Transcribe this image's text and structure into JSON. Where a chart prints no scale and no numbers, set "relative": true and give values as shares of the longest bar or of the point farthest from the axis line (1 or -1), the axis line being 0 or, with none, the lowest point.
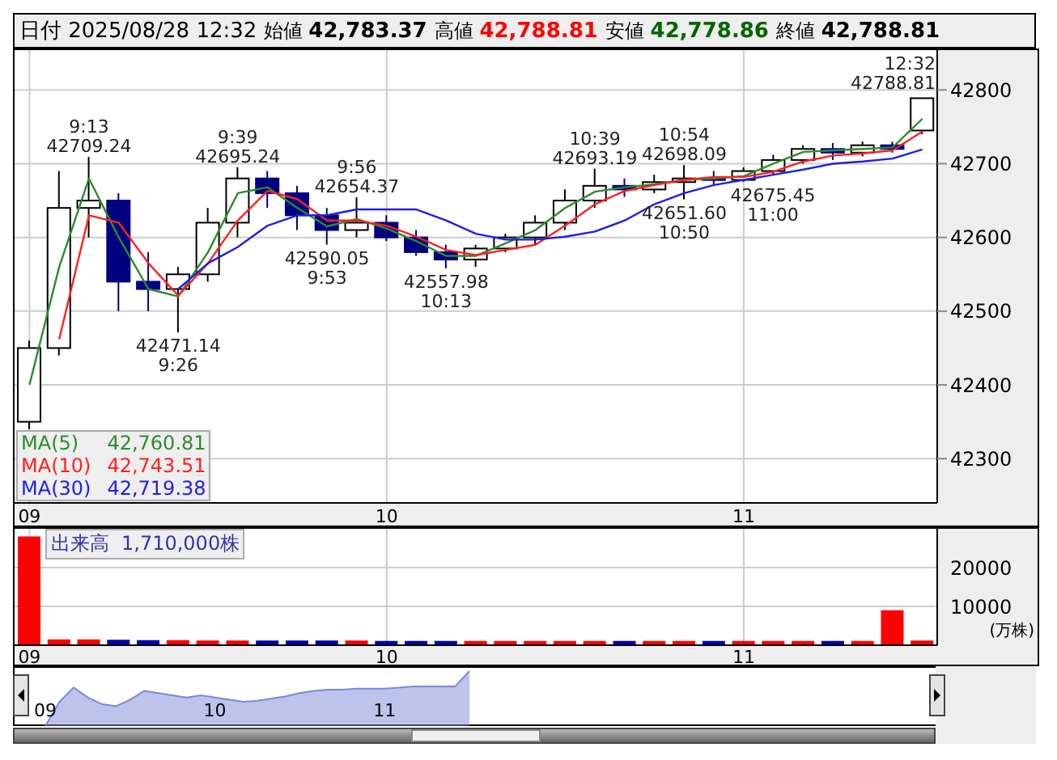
{
  "chart_data": [
    {
      "type": "candlestick",
      "title": "日付 2025/08/28 12:32 始値 42,783.37 高値 42,788.81 安値 42,778.86 終値 42,788.81",
      "categories": [
        "09",
        null,
        null,
        null,
        null,
        null,
        null,
        null,
        null,
        null,
        null,
        null,
        "10",
        null,
        null,
        null,
        null,
        null,
        null,
        null,
        null,
        null,
        null,
        null,
        "11",
        null,
        null,
        null,
        null,
        null,
        null
      ],
      "ohlc": [
        [
          42350,
          42460,
          42340,
          42450
        ],
        [
          42450,
          42690,
          42440,
          42640
        ],
        [
          42640,
          42709.24,
          42600,
          42650
        ],
        [
          42650,
          42660,
          42500,
          42540
        ],
        [
          42540,
          42580,
          42500,
          42530
        ],
        [
          42530,
          42560,
          42471.14,
          42550
        ],
        [
          42550,
          42640,
          42540,
          42620
        ],
        [
          42620,
          42695.24,
          42600,
          42680
        ],
        [
          42680,
          42690,
          42640,
          42660
        ],
        [
          42660,
          42670,
          42610,
          42630
        ],
        [
          42630,
          42640,
          42590.05,
          42610
        ],
        [
          42610,
          42654.37,
          42600,
          42620
        ],
        [
          42620,
          42630,
          42595,
          42600
        ],
        [
          42600,
          42610,
          42575,
          42580
        ],
        [
          42580,
          42590,
          42557.98,
          42570
        ],
        [
          42570,
          42590,
          42560,
          42585
        ],
        [
          42585,
          42605,
          42580,
          42600
        ],
        [
          42600,
          42630,
          42590,
          42620
        ],
        [
          42620,
          42665,
          42610,
          42650
        ],
        [
          42650,
          42693.19,
          42640,
          42670
        ],
        [
          42670,
          42680,
          42655,
          42665
        ],
        [
          42665,
          42685,
          42660,
          42675
        ],
        [
          42675,
          42698.09,
          42651.6,
          42680
        ],
        [
          42680,
          42690,
          42670,
          42678
        ],
        [
          42678,
          42695,
          42675.45,
          42690
        ],
        [
          42690,
          42712,
          42685,
          42705
        ],
        [
          42705,
          42725,
          42700,
          42720
        ],
        [
          42720,
          42728,
          42705,
          42715
        ],
        [
          42715,
          42730,
          42710,
          42725
        ],
        [
          42725,
          42730,
          42715,
          42720
        ],
        [
          42745,
          42788.81,
          42740,
          42788.81
        ]
      ],
      "series": [
        {
          "name": "MA(5)",
          "type": "line",
          "color": "#2e8b2e",
          "values": [
            42400,
            42560,
            42680,
            42600,
            42530,
            42520,
            42580,
            42660,
            42668,
            42640,
            42615,
            42625,
            42612,
            42595,
            42575,
            42575,
            42592,
            42610,
            42640,
            42662,
            42668,
            42672,
            42678,
            42680,
            42683,
            42700,
            42716,
            42718,
            42720,
            42722,
            42760.81
          ]
        },
        {
          "name": "MA(10)",
          "type": "line",
          "color": "#ff2020",
          "values": [
            null,
            42462,
            42630,
            42620,
            42565,
            42521,
            42565,
            42623,
            42663,
            42652,
            42623,
            42623,
            42616,
            42601,
            42583,
            42576,
            42583,
            42590,
            42616,
            42645,
            42663,
            42671,
            42678,
            42682,
            42682,
            42689,
            42703,
            42711,
            42714,
            42718,
            42743.51
          ]
        },
        {
          "name": "MA(30)",
          "type": "line",
          "color": "#2020e0",
          "values": [
            null,
            null,
            null,
            null,
            null,
            42530,
            42565,
            42587,
            42616,
            42630,
            42630,
            42638,
            42638,
            42638,
            42623,
            42605,
            42597,
            42597,
            42601,
            42608,
            42623,
            42645,
            42660,
            42671,
            42678,
            42685,
            42692,
            42700,
            42703,
            42707,
            42719.38
          ]
        }
      ],
      "ylim": [
        42240,
        42854
      ],
      "yticks": [
        42300,
        42400,
        42500,
        42600,
        42700,
        42800
      ],
      "grid": true,
      "legend": "bottom left",
      "annotations": [
        {
          "text": "9:13\n42709.24",
          "y": 42709.24
        },
        {
          "text": "42471.14\n9:26",
          "y": 42471.14
        },
        {
          "text": "9:39\n42695.24",
          "y": 42695.24
        },
        {
          "text": "42590.05\n9:53",
          "y": 42590.05
        },
        {
          "text": "9:56\n42654.37",
          "y": 42654.37
        },
        {
          "text": "42557.98\n10:13",
          "y": 42557.98
        },
        {
          "text": "10:39\n42693.19",
          "y": 42693.19
        },
        {
          "text": "42651.60\n10:50",
          "y": 42651.6
        },
        {
          "text": "10:54\n42698.09",
          "y": 42698.09
        },
        {
          "text": "42675.45\n11:00",
          "y": 42675.45
        },
        "12:32\n42788.81",
        "42,760.81",
        "42,743.51",
        "42,719.38"
      ]
    },
    {
      "type": "bar",
      "title": "出来高  1,710,000株",
      "ylabel": "(万株)",
      "categories": [
        "09",
        null,
        null,
        null,
        null,
        null,
        null,
        null,
        null,
        null,
        null,
        null,
        "10",
        null,
        null,
        null,
        null,
        null,
        null,
        null,
        null,
        null,
        null,
        null,
        "11",
        null,
        null,
        null,
        null,
        null,
        null
      ],
      "values": [
        28000,
        1500,
        1500,
        1400,
        1300,
        1300,
        1200,
        1200,
        1200,
        1200,
        1200,
        1200,
        1100,
        1100,
        1100,
        1100,
        1100,
        1100,
        1100,
        1100,
        1100,
        1100,
        1100,
        1100,
        1100,
        1100,
        1100,
        1100,
        1100,
        9000,
        1200
      ],
      "colors": [
        "#ff0000",
        "#ff0000",
        "#ff0000",
        "#0000aa",
        "#0000aa",
        "#ff0000",
        "#ff0000",
        "#ff0000",
        "#0000aa",
        "#0000aa",
        "#0000aa",
        "#ff0000",
        "#0000aa",
        "#0000aa",
        "#0000aa",
        "#ff0000",
        "#ff0000",
        "#ff0000",
        "#ff0000",
        "#ff0000",
        "#0000aa",
        "#ff0000",
        "#ff0000",
        "#0000aa",
        "#ff0000",
        "#ff0000",
        "#ff0000",
        "#0000aa",
        "#ff0000",
        "#ff0000",
        "#ff0000"
      ],
      "ylim": [
        0,
        30000
      ],
      "yticks": [
        10000,
        20000
      ],
      "grid": true
    },
    {
      "type": "area",
      "relative": true,
      "color": "#7b88d8",
      "categories": [
        "09",
        null,
        null,
        null,
        null,
        null,
        null,
        null,
        null,
        null,
        null,
        null,
        "10",
        null,
        null,
        null,
        null,
        null,
        null,
        null,
        null,
        null,
        null,
        null,
        "11",
        null,
        null,
        null,
        null,
        null,
        null
      ],
      "values": [
        0,
        0.44,
        0.7,
        0.52,
        0.4,
        0.36,
        0.48,
        0.64,
        0.6,
        0.56,
        0.52,
        0.56,
        0.52,
        0.48,
        0.44,
        0.46,
        0.5,
        0.54,
        0.6,
        0.64,
        0.66,
        0.66,
        0.68,
        0.68,
        0.68,
        0.7,
        0.72,
        0.72,
        0.72,
        0.72,
        1
      ]
    }
  ]
}
